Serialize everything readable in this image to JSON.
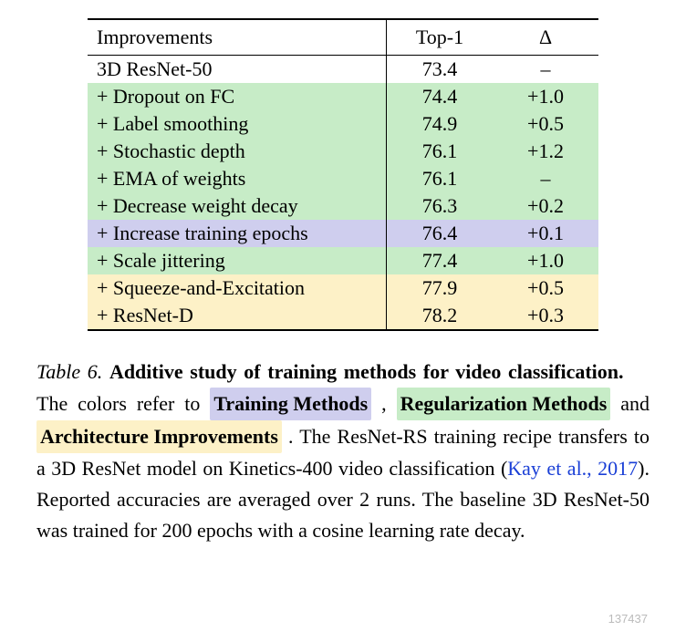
{
  "colors": {
    "green": "#c7ecc7",
    "purple": "#cfceee",
    "yellow": "#fdf1c7",
    "cite": "#1a3fd6"
  },
  "table": {
    "headers": {
      "improvements": "Improvements",
      "top1": "Top-1",
      "delta": "Δ"
    },
    "rows": [
      {
        "imp": "3D ResNet-50",
        "top1": "73.4",
        "delta": "–",
        "bold": false,
        "bg": null
      },
      {
        "imp": "+ Dropout on FC",
        "top1": "74.4",
        "delta": "+1.0",
        "bold": true,
        "bg": "green"
      },
      {
        "imp": "+ Label smoothing",
        "top1": "74.9",
        "delta": "+0.5",
        "bold": true,
        "bg": "green"
      },
      {
        "imp": "+ Stochastic depth",
        "top1": "76.1",
        "delta": "+1.2",
        "bold": true,
        "bg": "green"
      },
      {
        "imp": "+ EMA of weights",
        "top1": "76.1",
        "delta": "–",
        "bold": false,
        "bg": "green"
      },
      {
        "imp": "+ Decrease weight decay",
        "top1": "76.3",
        "delta": "+0.2",
        "bold": true,
        "bg": "green"
      },
      {
        "imp": "+ Increase training epochs",
        "top1": "76.4",
        "delta": "+0.1",
        "bold": true,
        "bg": "purple"
      },
      {
        "imp": "+ Scale jittering",
        "top1": "77.4",
        "delta": "+1.0",
        "bold": true,
        "bg": "green"
      },
      {
        "imp": "+ Squeeze-and-Excitation",
        "top1": "77.9",
        "delta": "+0.5",
        "bold": true,
        "bg": "yellow"
      },
      {
        "imp": "+ ResNet-D",
        "top1": "78.2",
        "delta": "+0.3",
        "bold": true,
        "bg": "yellow"
      }
    ]
  },
  "caption": {
    "number": "Table 6.",
    "title": "Additive study of training methods for video classification.",
    "legend_pre": "The colors refer to",
    "legend_training": "Training Methods",
    "legend_reg": "Regularization Methods",
    "legend_and": "and",
    "legend_arch": "Architecture Improvements",
    "body1": "The ResNet-RS training recipe transfers to a 3D ResNet model on Kinetics-400 video classification (",
    "cite": "Kay et al., 2017",
    "body2": "). Reported accuracies are averaged over 2 runs. The baseline 3D ResNet-50 was trained for 200 epochs with a cosine learning rate decay."
  },
  "watermark": "137437"
}
